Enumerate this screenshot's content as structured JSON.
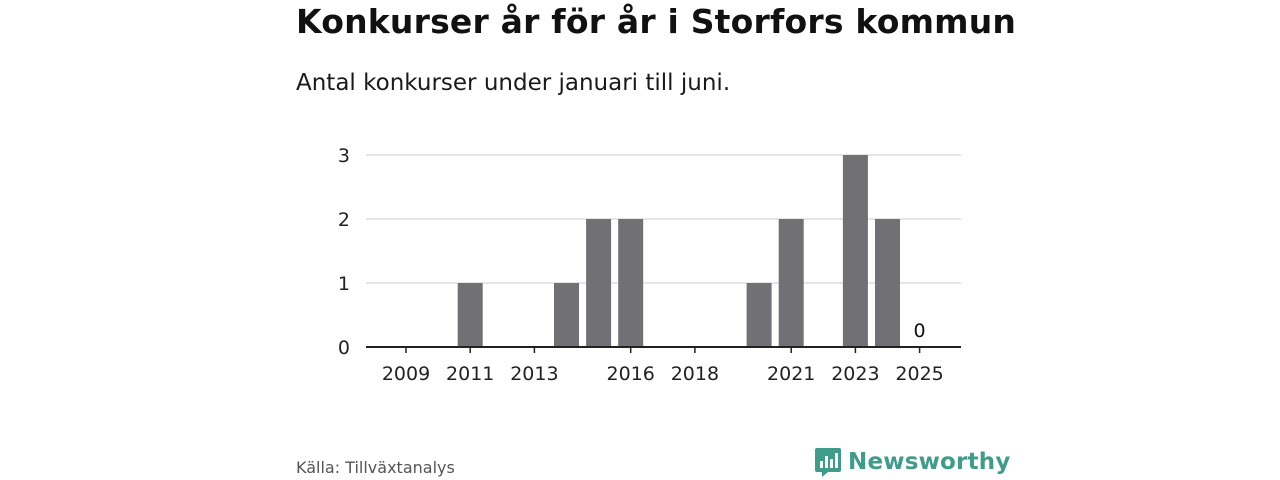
{
  "header": {
    "title": "Konkurser år för år i Storfors kommun",
    "subtitle": "Antal konkurser under januari till juni."
  },
  "footer": {
    "source": "Källa: Tillväxtanalys",
    "brand": "Newsworthy",
    "brand_icon": "bar-chart-speech-bubble-icon",
    "brand_color": "#3f9b8a"
  },
  "chart_data": {
    "type": "bar",
    "categories": [
      "2009",
      "2010",
      "2011",
      "2012",
      "2013",
      "2014",
      "2015",
      "2016",
      "2017",
      "2018",
      "2019",
      "2020",
      "2021",
      "2022",
      "2023",
      "2024",
      "2025"
    ],
    "values": [
      0,
      0,
      1,
      0,
      0,
      1,
      2,
      2,
      0,
      0,
      0,
      1,
      2,
      0,
      3,
      2,
      0
    ],
    "x_tick_labels": [
      "2009",
      "2011",
      "2013",
      "2016",
      "2018",
      "2021",
      "2023",
      "2025"
    ],
    "y_ticks": [
      0,
      1,
      2,
      3
    ],
    "ylim": [
      0,
      3
    ],
    "annotations": [
      {
        "category": "2025",
        "text": "0"
      }
    ],
    "bar_color": "#707075",
    "grid": true,
    "xlabel": "",
    "ylabel": ""
  }
}
